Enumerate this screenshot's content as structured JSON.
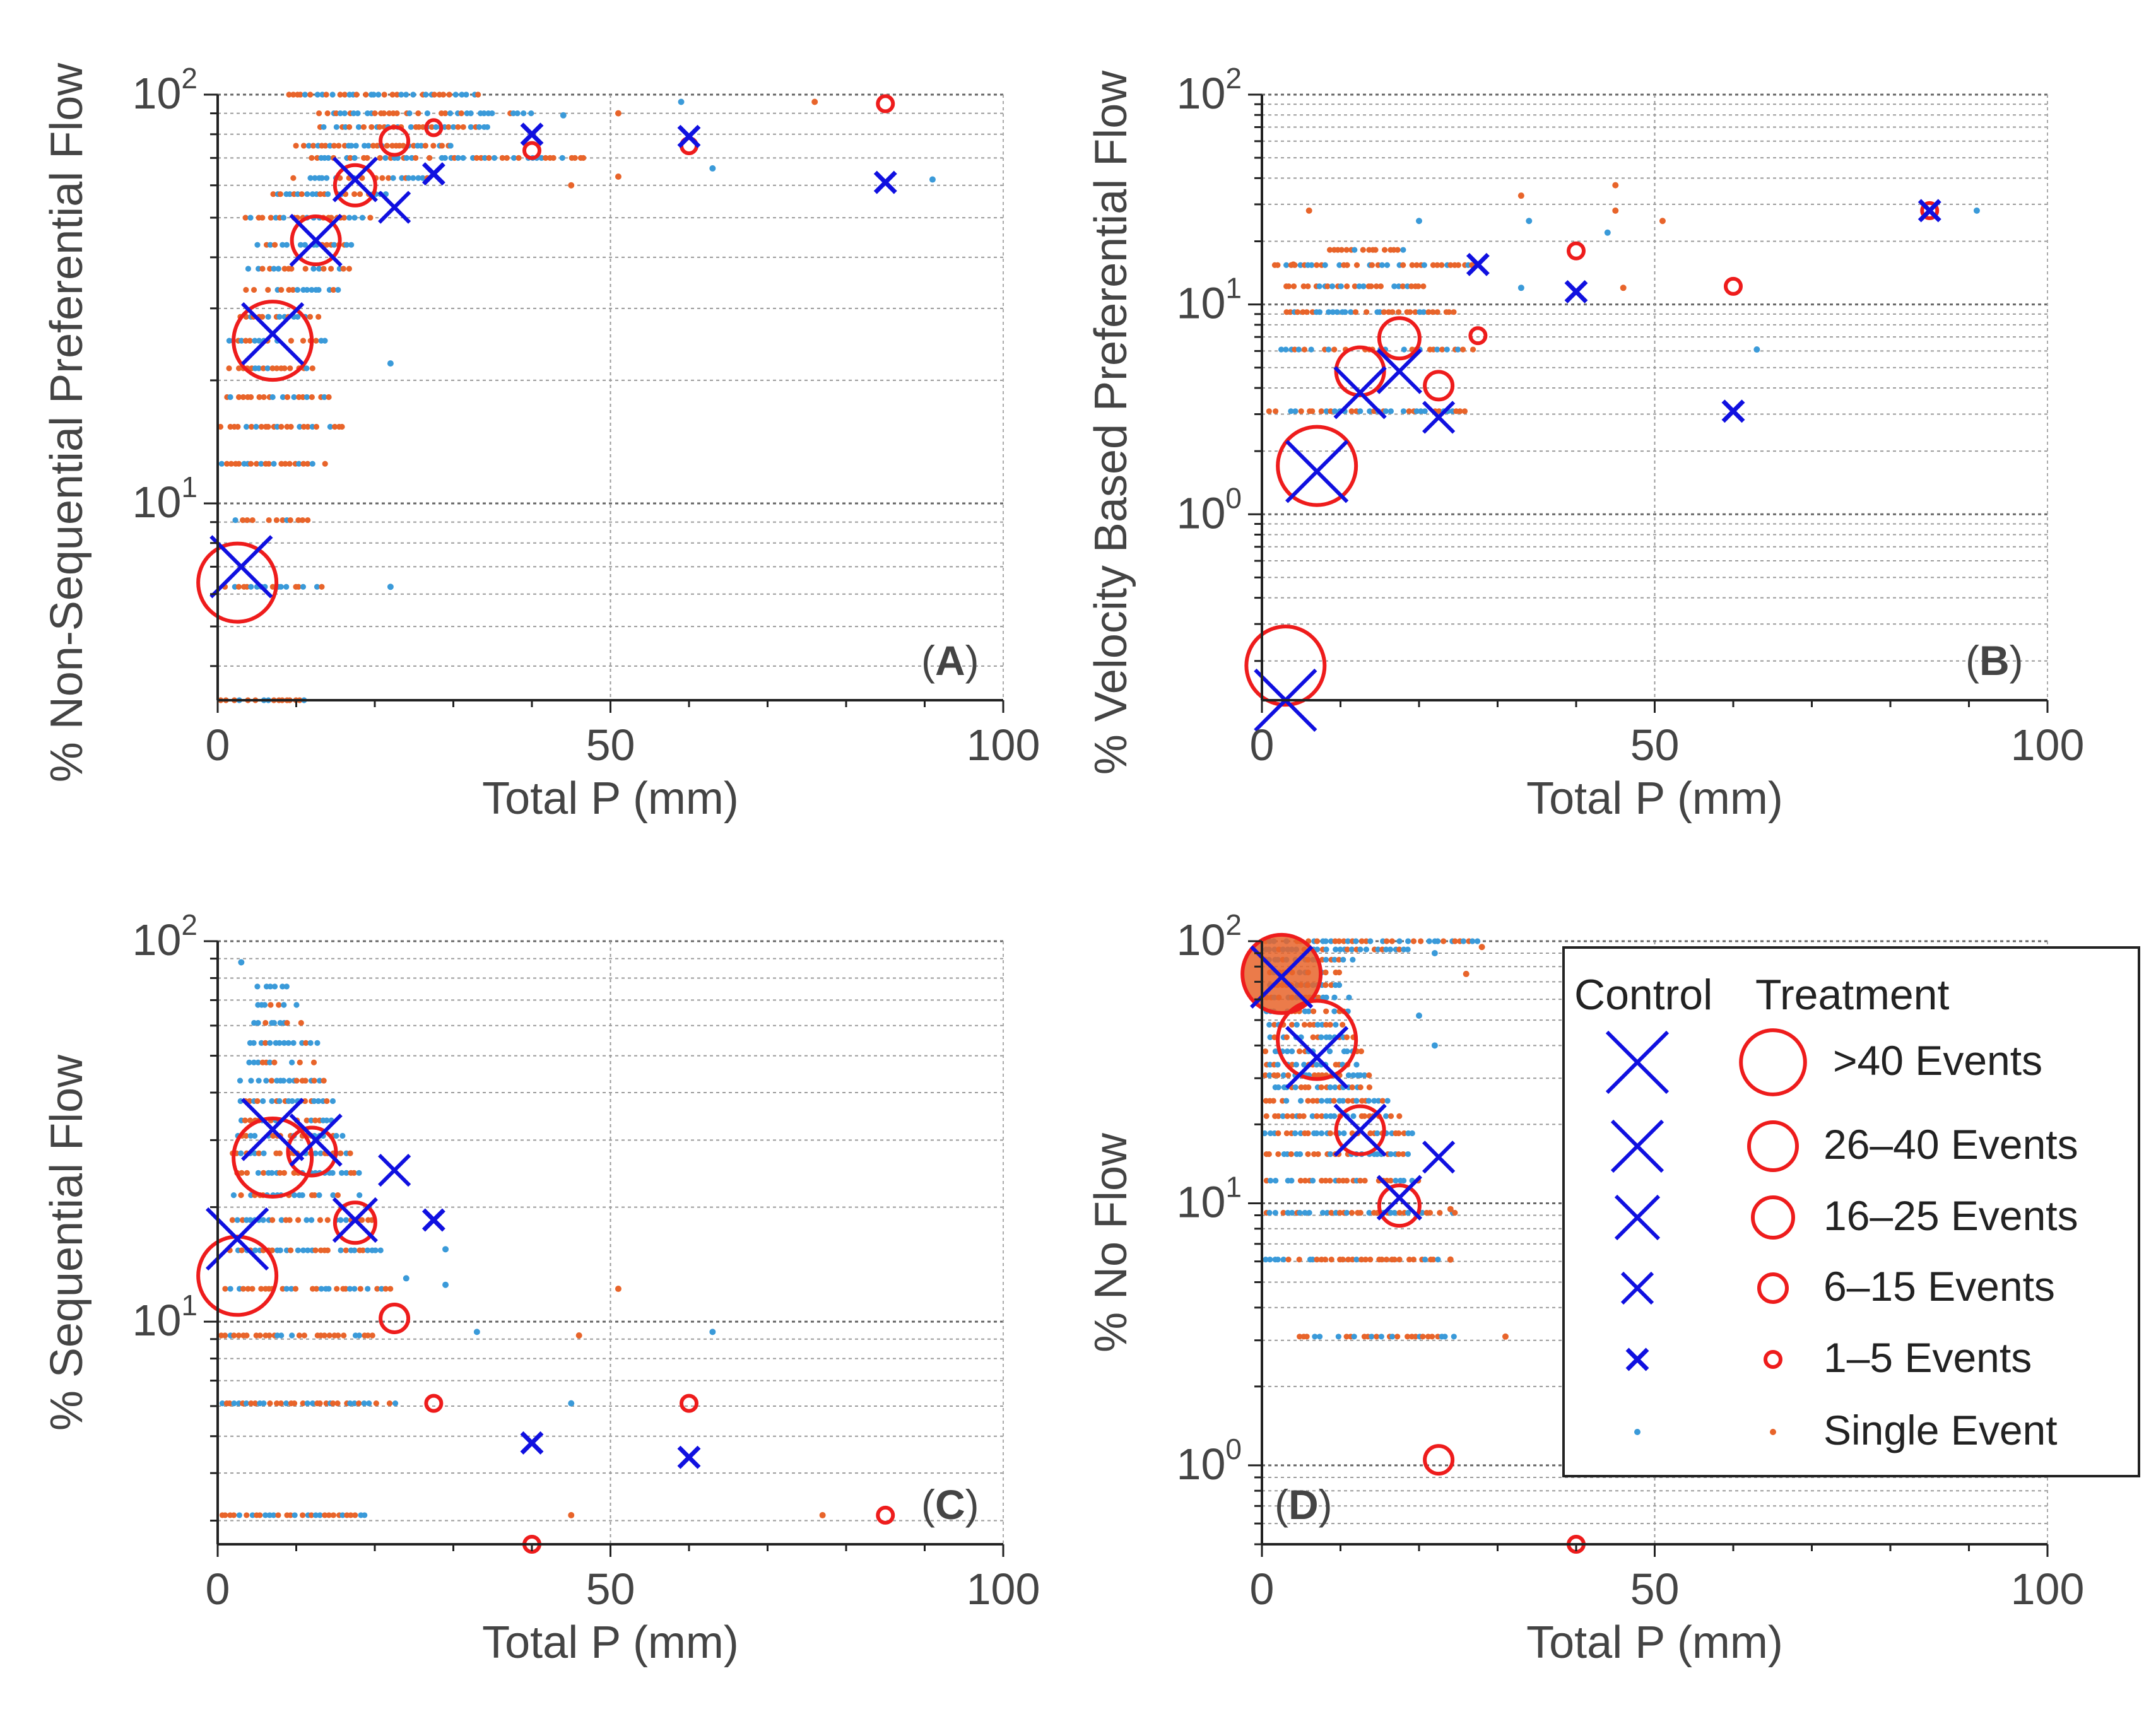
{
  "colors": {
    "control_marker": "#1010e0",
    "treatment_marker": "#ee1c1c",
    "control_single": "#3a9ad9",
    "treatment_single": "#e8642a",
    "axis": "#222222",
    "grid": "#9a9a9a",
    "text": "#444444"
  },
  "legend": {
    "control_header": "Control",
    "treatment_header": "Treatment",
    "entries": [
      {
        "label": ">40 Events",
        "size_class": 5
      },
      {
        "label": "26–40 Events",
        "size_class": 4
      },
      {
        "label": "16–25 Events",
        "size_class": 3
      },
      {
        "label": "6–15 Events",
        "size_class": 2
      },
      {
        "label": "1–5 Events",
        "size_class": 1
      },
      {
        "label": "Single Event",
        "size_class": 0
      }
    ]
  },
  "chart_data": [
    {
      "type": "scatter",
      "id": "A",
      "panel_label": "(A)",
      "xlabel": "Total P (mm)",
      "ylabel": "% Non-Sequential Preferential Flow",
      "x_ticks": [
        "0",
        "50",
        "100"
      ],
      "y_ticks": [
        {
          "base": "10",
          "exp": "1"
        },
        {
          "base": "10",
          "exp": "2"
        }
      ],
      "xlim": [
        0,
        100
      ],
      "ylim_log": [
        3.3,
        100
      ],
      "control_markers": [
        {
          "x": 3,
          "y": 7,
          "size_class": 5
        },
        {
          "x": 7,
          "y": 26,
          "size_class": 5
        },
        {
          "x": 12.5,
          "y": 44,
          "size_class": 4
        },
        {
          "x": 17.5,
          "y": 62,
          "size_class": 3
        },
        {
          "x": 22.5,
          "y": 53,
          "size_class": 2
        },
        {
          "x": 27.5,
          "y": 64,
          "size_class": 1
        },
        {
          "x": 40,
          "y": 80,
          "size_class": 1
        },
        {
          "x": 60,
          "y": 79,
          "size_class": 1
        },
        {
          "x": 85,
          "y": 61,
          "size_class": 1
        }
      ],
      "treatment_markers": [
        {
          "x": 2.5,
          "y": 6.4,
          "size_class": 5
        },
        {
          "x": 7,
          "y": 25,
          "size_class": 5
        },
        {
          "x": 12.5,
          "y": 44,
          "size_class": 4
        },
        {
          "x": 17.5,
          "y": 60,
          "size_class": 3
        },
        {
          "x": 22.5,
          "y": 77,
          "size_class": 2
        },
        {
          "x": 27.5,
          "y": 83,
          "size_class": 1
        },
        {
          "x": 40,
          "y": 73,
          "size_class": 1
        },
        {
          "x": 60,
          "y": 75,
          "size_class": 1
        },
        {
          "x": 85,
          "y": 95,
          "size_class": 1
        }
      ],
      "single_rows": [
        {
          "y": 3.3,
          "x_from": 0.5,
          "x_to": 11,
          "mix": 0.6
        },
        {
          "y": 6.25,
          "x_from": 0.5,
          "x_to": 14,
          "mix": 0.5
        },
        {
          "y": 9.1,
          "x_from": 0.5,
          "x_to": 12,
          "mix": 0.6
        },
        {
          "y": 12.5,
          "x_from": 0.5,
          "x_to": 14,
          "mix": 0.7
        },
        {
          "y": 15.4,
          "x_from": 0.5,
          "x_to": 16,
          "mix": 0.7
        },
        {
          "y": 18.2,
          "x_from": 0.5,
          "x_to": 15,
          "mix": 0.6
        },
        {
          "y": 21.4,
          "x_from": 1.5,
          "x_to": 12,
          "mix": 0.6
        },
        {
          "y": 25,
          "x_from": 1.5,
          "x_to": 14,
          "mix": 0.6
        },
        {
          "y": 28.6,
          "x_from": 3,
          "x_to": 13,
          "mix": 0.6
        },
        {
          "y": 33.3,
          "x_from": 2,
          "x_to": 16,
          "mix": 0.6
        },
        {
          "y": 37.5,
          "x_from": 4,
          "x_to": 17,
          "mix": 0.6
        },
        {
          "y": 42.9,
          "x_from": 5,
          "x_to": 18,
          "mix": 0.5
        },
        {
          "y": 50,
          "x_from": 3,
          "x_to": 20,
          "mix": 0.6
        },
        {
          "y": 57.1,
          "x_from": 7,
          "x_to": 22,
          "mix": 0.5
        },
        {
          "y": 62.5,
          "x_from": 9,
          "x_to": 27,
          "mix": 0.5
        },
        {
          "y": 70,
          "x_from": 12,
          "x_to": 47,
          "mix": 0.5
        },
        {
          "y": 75,
          "x_from": 10,
          "x_to": 30,
          "mix": 0.5
        },
        {
          "y": 83.3,
          "x_from": 13,
          "x_to": 35,
          "mix": 0.5
        },
        {
          "y": 90,
          "x_from": 13,
          "x_to": 40,
          "mix": 0.5
        },
        {
          "y": 100,
          "x_from": 9,
          "x_to": 34,
          "mix": 0.5
        }
      ],
      "single_points": [
        {
          "x": 91,
          "y": 62,
          "group": "control"
        },
        {
          "x": 76,
          "y": 96,
          "group": "treatment"
        },
        {
          "x": 51,
          "y": 90,
          "group": "treatment"
        },
        {
          "x": 59,
          "y": 96,
          "group": "control"
        },
        {
          "x": 51,
          "y": 63,
          "group": "treatment"
        },
        {
          "x": 45,
          "y": 60,
          "group": "treatment"
        },
        {
          "x": 63,
          "y": 66,
          "group": "control"
        },
        {
          "x": 44,
          "y": 89,
          "group": "control"
        },
        {
          "x": 22,
          "y": 22,
          "group": "control"
        },
        {
          "x": 22,
          "y": 6.25,
          "group": "control"
        }
      ]
    },
    {
      "type": "scatter",
      "id": "B",
      "panel_label": "(B)",
      "xlabel": "Total P (mm)",
      "ylabel": "% Velocity Based Preferential Flow",
      "x_ticks": [
        "0",
        "50",
        "100"
      ],
      "y_ticks": [
        {
          "base": "10",
          "exp": "0"
        },
        {
          "base": "10",
          "exp": "1"
        },
        {
          "base": "10",
          "exp": "2"
        }
      ],
      "xlim": [
        0,
        100
      ],
      "ylim_log": [
        0.13,
        100
      ],
      "control_markers": [
        {
          "x": 3,
          "y": 0.13,
          "size_class": 5
        },
        {
          "x": 7,
          "y": 1.6,
          "size_class": 5
        },
        {
          "x": 12.5,
          "y": 3.8,
          "size_class": 4
        },
        {
          "x": 17.5,
          "y": 4.8,
          "size_class": 3
        },
        {
          "x": 22.5,
          "y": 2.9,
          "size_class": 2
        },
        {
          "x": 27.5,
          "y": 15.5,
          "size_class": 1
        },
        {
          "x": 40,
          "y": 11.5,
          "size_class": 1
        },
        {
          "x": 60,
          "y": 3.1,
          "size_class": 1
        },
        {
          "x": 85,
          "y": 28,
          "size_class": 1
        }
      ],
      "treatment_markers": [
        {
          "x": 3,
          "y": 0.19,
          "size_class": 5
        },
        {
          "x": 7,
          "y": 1.7,
          "size_class": 5
        },
        {
          "x": 12.5,
          "y": 4.8,
          "size_class": 4
        },
        {
          "x": 17.5,
          "y": 6.9,
          "size_class": 3
        },
        {
          "x": 22.5,
          "y": 4.1,
          "size_class": 2
        },
        {
          "x": 27.5,
          "y": 7.1,
          "size_class": 1
        },
        {
          "x": 40,
          "y": 18,
          "size_class": 1
        },
        {
          "x": 60,
          "y": 12.2,
          "size_class": 1
        },
        {
          "x": 85,
          "y": 28,
          "size_class": 1
        }
      ],
      "single_rows": [
        {
          "y": 3.1,
          "x_from": 0.5,
          "x_to": 26,
          "mix": 0.55
        },
        {
          "y": 6.1,
          "x_from": 2,
          "x_to": 27,
          "mix": 0.55
        },
        {
          "y": 9.2,
          "x_from": 3,
          "x_to": 25,
          "mix": 0.55
        },
        {
          "y": 12.2,
          "x_from": 3,
          "x_to": 21,
          "mix": 0.55
        },
        {
          "y": 15.4,
          "x_from": 1.5,
          "x_to": 28,
          "mix": 0.6
        },
        {
          "y": 18.2,
          "x_from": 8,
          "x_to": 18,
          "mix": 0.8
        }
      ],
      "single_points": [
        {
          "x": 91,
          "y": 28,
          "group": "control"
        },
        {
          "x": 51,
          "y": 25,
          "group": "treatment"
        },
        {
          "x": 45,
          "y": 37,
          "group": "treatment"
        },
        {
          "x": 45,
          "y": 28,
          "group": "treatment"
        },
        {
          "x": 44,
          "y": 22,
          "group": "control"
        },
        {
          "x": 46,
          "y": 12,
          "group": "treatment"
        },
        {
          "x": 33,
          "y": 33,
          "group": "treatment"
        },
        {
          "x": 34,
          "y": 25,
          "group": "control"
        },
        {
          "x": 33,
          "y": 12,
          "group": "control"
        },
        {
          "x": 63,
          "y": 6.1,
          "group": "control"
        },
        {
          "x": 20,
          "y": 25,
          "group": "control"
        },
        {
          "x": 6,
          "y": 28,
          "group": "treatment"
        },
        {
          "x": 4,
          "y": 15.5,
          "group": "treatment"
        }
      ]
    },
    {
      "type": "scatter",
      "id": "C",
      "panel_label": "(C)",
      "xlabel": "Total P (mm)",
      "ylabel": "% Sequential Flow",
      "x_ticks": [
        "0",
        "50",
        "100"
      ],
      "y_ticks": [
        {
          "base": "10",
          "exp": "1"
        },
        {
          "base": "10",
          "exp": "2"
        }
      ],
      "xlim": [
        0,
        100
      ],
      "ylim_log": [
        2.6,
        100
      ],
      "control_markers": [
        {
          "x": 2.5,
          "y": 16.5,
          "size_class": 5
        },
        {
          "x": 7,
          "y": 32,
          "size_class": 5
        },
        {
          "x": 12.5,
          "y": 30,
          "size_class": 4
        },
        {
          "x": 17.5,
          "y": 18.5,
          "size_class": 3
        },
        {
          "x": 22.5,
          "y": 25,
          "size_class": 2
        },
        {
          "x": 27.5,
          "y": 18.5,
          "size_class": 1
        },
        {
          "x": 40,
          "y": 4.8,
          "size_class": 1
        },
        {
          "x": 60,
          "y": 4.4,
          "size_class": 1
        }
      ],
      "treatment_markers": [
        {
          "x": 2.5,
          "y": 13.2,
          "size_class": 5
        },
        {
          "x": 7,
          "y": 27,
          "size_class": 5
        },
        {
          "x": 12,
          "y": 28,
          "size_class": 4
        },
        {
          "x": 17.5,
          "y": 18.2,
          "size_class": 3
        },
        {
          "x": 22.5,
          "y": 10.2,
          "size_class": 2
        },
        {
          "x": 27.5,
          "y": 6.1,
          "size_class": 1
        },
        {
          "x": 40,
          "y": 2.6,
          "size_class": 1
        },
        {
          "x": 60,
          "y": 6.1,
          "size_class": 1
        },
        {
          "x": 85,
          "y": 3.1,
          "size_class": 1
        }
      ],
      "single_rows": [
        {
          "y": 3.1,
          "x_from": 0.5,
          "x_to": 19,
          "mix": 0.75
        },
        {
          "y": 6.1,
          "x_from": 0.5,
          "x_to": 23,
          "mix": 0.6
        },
        {
          "y": 9.2,
          "x_from": 0.5,
          "x_to": 20,
          "mix": 0.7
        },
        {
          "y": 12.2,
          "x_from": 1,
          "x_to": 22,
          "mix": 0.6
        },
        {
          "y": 15.4,
          "x_from": 1.5,
          "x_to": 21,
          "mix": 0.5
        },
        {
          "y": 18.5,
          "x_from": 2,
          "x_to": 20,
          "mix": 0.5
        },
        {
          "y": 21.5,
          "x_from": 2,
          "x_to": 18,
          "mix": 0.5
        },
        {
          "y": 24.6,
          "x_from": 2,
          "x_to": 19,
          "mix": 0.5
        },
        {
          "y": 27.7,
          "x_from": 2,
          "x_to": 17,
          "mix": 0.45
        },
        {
          "y": 30.8,
          "x_from": 2,
          "x_to": 16,
          "mix": 0.45
        },
        {
          "y": 33.8,
          "x_from": 3,
          "x_to": 15,
          "mix": 0.4
        },
        {
          "y": 38,
          "x_from": 3,
          "x_to": 15,
          "mix": 0.4
        },
        {
          "y": 43,
          "x_from": 3,
          "x_to": 14,
          "mix": 0.4
        },
        {
          "y": 48,
          "x_from": 4,
          "x_to": 13,
          "mix": 0.35
        },
        {
          "y": 54,
          "x_from": 4,
          "x_to": 13,
          "mix": 0.3
        },
        {
          "y": 61,
          "x_from": 4,
          "x_to": 11,
          "mix": 0.3
        },
        {
          "y": 68,
          "x_from": 5,
          "x_to": 10,
          "mix": 0.2
        },
        {
          "y": 76,
          "x_from": 5,
          "x_to": 9,
          "mix": 0.1
        }
      ],
      "single_points": [
        {
          "x": 3,
          "y": 88,
          "group": "control"
        },
        {
          "x": 63,
          "y": 9.4,
          "group": "control"
        },
        {
          "x": 51,
          "y": 12.2,
          "group": "treatment"
        },
        {
          "x": 46,
          "y": 9.2,
          "group": "treatment"
        },
        {
          "x": 33,
          "y": 9.4,
          "group": "control"
        },
        {
          "x": 45,
          "y": 6.1,
          "group": "control"
        },
        {
          "x": 45,
          "y": 3.1,
          "group": "treatment"
        },
        {
          "x": 77,
          "y": 3.1,
          "group": "treatment"
        },
        {
          "x": 29,
          "y": 15.5,
          "group": "control"
        },
        {
          "x": 29,
          "y": 12.5,
          "group": "control"
        },
        {
          "x": 24,
          "y": 13,
          "group": "control"
        }
      ]
    },
    {
      "type": "scatter",
      "id": "D",
      "panel_label": "(D)",
      "xlabel": "Total P (mm)",
      "ylabel": "% No Flow",
      "x_ticks": [
        "0",
        "50",
        "100"
      ],
      "y_ticks": [
        {
          "base": "10",
          "exp": "0"
        },
        {
          "base": "10",
          "exp": "1"
        },
        {
          "base": "10",
          "exp": "2"
        }
      ],
      "xlim": [
        0,
        100
      ],
      "ylim_log": [
        0.5,
        100
      ],
      "control_markers": [
        {
          "x": 2.5,
          "y": 73,
          "size_class": 5
        },
        {
          "x": 7,
          "y": 36,
          "size_class": 5
        },
        {
          "x": 12.5,
          "y": 19,
          "size_class": 4
        },
        {
          "x": 17.5,
          "y": 10.5,
          "size_class": 3
        },
        {
          "x": 22.5,
          "y": 15,
          "size_class": 2
        }
      ],
      "treatment_markers": [
        {
          "x": 2.5,
          "y": 75,
          "size_class": 5
        },
        {
          "x": 7,
          "y": 42,
          "size_class": 5
        },
        {
          "x": 12.5,
          "y": 19,
          "size_class": 4
        },
        {
          "x": 17.5,
          "y": 9.8,
          "size_class": 3
        },
        {
          "x": 22.5,
          "y": 1.05,
          "size_class": 2
        },
        {
          "x": 40,
          "y": 0.5,
          "size_class": 1
        }
      ],
      "single_rows": [
        {
          "y": 3.1,
          "x_from": 3,
          "x_to": 25,
          "mix": 0.55
        },
        {
          "y": 6.1,
          "x_from": 0.5,
          "x_to": 23,
          "mix": 0.6
        },
        {
          "y": 9.2,
          "x_from": 0.5,
          "x_to": 25,
          "mix": 0.45
        },
        {
          "y": 12.2,
          "x_from": 0.5,
          "x_to": 20,
          "mix": 0.55
        },
        {
          "y": 15.4,
          "x_from": 0.5,
          "x_to": 19,
          "mix": 0.6
        },
        {
          "y": 18.5,
          "x_from": 0.5,
          "x_to": 20,
          "mix": 0.55
        },
        {
          "y": 21.5,
          "x_from": 0.5,
          "x_to": 18,
          "mix": 0.55
        },
        {
          "y": 24.6,
          "x_from": 0.5,
          "x_to": 16,
          "mix": 0.5
        },
        {
          "y": 27.7,
          "x_from": 0.5,
          "x_to": 15,
          "mix": 0.5
        },
        {
          "y": 30.8,
          "x_from": 0.5,
          "x_to": 14,
          "mix": 0.5
        },
        {
          "y": 33.8,
          "x_from": 0.5,
          "x_to": 13,
          "mix": 0.5
        },
        {
          "y": 38,
          "x_from": 0.5,
          "x_to": 13,
          "mix": 0.5
        },
        {
          "y": 43,
          "x_from": 0.5,
          "x_to": 12,
          "mix": 0.5
        },
        {
          "y": 48,
          "x_from": 0.5,
          "x_to": 12,
          "mix": 0.5
        },
        {
          "y": 54,
          "x_from": 0.5,
          "x_to": 11,
          "mix": 0.5
        },
        {
          "y": 61,
          "x_from": 0.5,
          "x_to": 11,
          "mix": 0.5
        },
        {
          "y": 68,
          "x_from": 0.5,
          "x_to": 10,
          "mix": 0.55
        },
        {
          "y": 76,
          "x_from": 0.5,
          "x_to": 10,
          "mix": 0.55
        },
        {
          "y": 85,
          "x_from": 0.5,
          "x_to": 12,
          "mix": 0.5
        },
        {
          "y": 93,
          "x_from": 0.5,
          "x_to": 19,
          "mix": 0.4
        },
        {
          "y": 100,
          "x_from": 0.5,
          "x_to": 28,
          "mix": 0.45
        }
      ],
      "single_points": [
        {
          "x": 22,
          "y": 90,
          "group": "control"
        },
        {
          "x": 22,
          "y": 40,
          "group": "control"
        },
        {
          "x": 31,
          "y": 3.1,
          "group": "treatment"
        },
        {
          "x": 24,
          "y": 9.5,
          "group": "treatment"
        },
        {
          "x": 24,
          "y": 6.1,
          "group": "treatment"
        },
        {
          "x": 26,
          "y": 75,
          "group": "treatment"
        },
        {
          "x": 20,
          "y": 52,
          "group": "control"
        },
        {
          "x": 28,
          "y": 95,
          "group": "treatment"
        }
      ]
    }
  ]
}
